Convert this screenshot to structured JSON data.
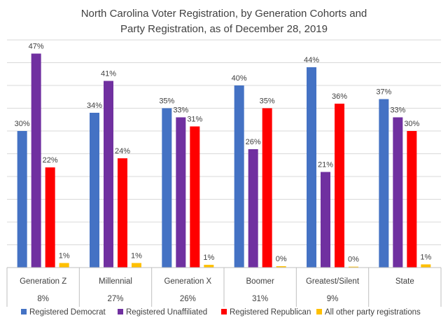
{
  "chart_data": {
    "type": "bar",
    "title_line1": "North Carolina Voter Registration, by Generation Cohorts and",
    "title_line2": "Party Registration, as of December 28, 2019",
    "categories": [
      "Generation Z",
      "Millennial",
      "Generation X",
      "Boomer",
      "Greatest/Silent",
      "State"
    ],
    "category_shares": [
      "8%",
      "27%",
      "26%",
      "31%",
      "9%",
      ""
    ],
    "series": [
      {
        "name": "Registered Democrat",
        "color": "#4472C4",
        "values": [
          30,
          34,
          35,
          40,
          44,
          37
        ],
        "labels": [
          "30%",
          "34%",
          "35%",
          "40%",
          "44%",
          "37%"
        ]
      },
      {
        "name": "Registered Unaffiliated",
        "color": "#7030A0",
        "values": [
          47,
          41,
          33,
          26,
          21,
          33
        ],
        "labels": [
          "47%",
          "41%",
          "33%",
          "26%",
          "21%",
          "33%"
        ]
      },
      {
        "name": "Registered Republican",
        "color": "#FF0000",
        "values": [
          22,
          24,
          31,
          35,
          36,
          30
        ],
        "labels": [
          "22%",
          "24%",
          "31%",
          "35%",
          "36%",
          "30%"
        ]
      },
      {
        "name": "All other party registrations",
        "color": "#FFC000",
        "values": [
          1,
          1,
          0.6,
          0.3,
          0.2,
          0.7
        ],
        "labels": [
          "1%",
          "1%",
          "1%",
          "0%",
          "0%",
          "1%"
        ]
      }
    ],
    "ylim": [
      0,
      50
    ],
    "grid": true,
    "legend_position": "bottom"
  }
}
